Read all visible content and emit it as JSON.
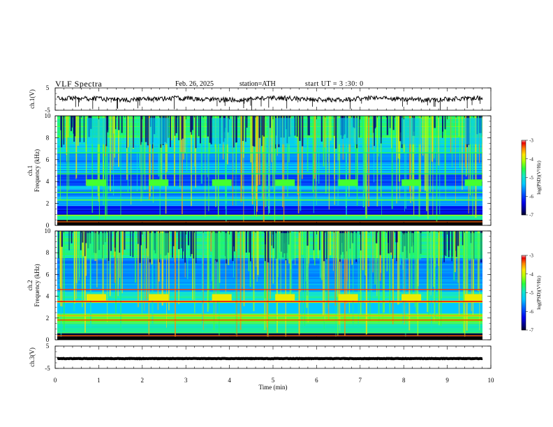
{
  "header": {
    "title": "VLF  Spectra",
    "date": "Feb. 26, 2025",
    "station": "station=ATH",
    "start": "start  UT  =   3  :30: 0"
  },
  "chart_data": [
    {
      "type": "line",
      "panel": "ch1-waveform",
      "ylabel": "ch.1(V)",
      "ylim": [
        -5,
        5
      ],
      "yticks": [
        "5",
        "-5"
      ],
      "x_range": [
        0,
        10
      ],
      "level": 0
    },
    {
      "type": "heatmap",
      "panel": "ch1-spectrogram",
      "ylabel": "ch.1\nFrequency  (kHz)",
      "ylim": [
        0,
        10
      ],
      "yticks": [
        "0",
        "2",
        "4",
        "6",
        "8",
        "10"
      ],
      "x_range": [
        0,
        10
      ],
      "colorbar": {
        "label": "log(PSD)(V²/Hz)",
        "range": [
          -7,
          -3
        ],
        "ticks": [
          "-3",
          "-4",
          "-5",
          "-6",
          "-7"
        ]
      }
    },
    {
      "type": "heatmap",
      "panel": "ch2-spectrogram",
      "ylabel": "ch.2\nFrequency  (kHz)",
      "ylim": [
        0,
        10
      ],
      "yticks": [
        "0",
        "2",
        "4",
        "6",
        "8",
        "10"
      ],
      "x_range": [
        0,
        10
      ],
      "colorbar": {
        "label": "log(PSD)(V²/Hz)",
        "range": [
          -7,
          -3
        ],
        "ticks": [
          "-3",
          "-4",
          "-5",
          "-6",
          "-7"
        ]
      }
    },
    {
      "type": "line",
      "panel": "ch3-waveform",
      "ylabel": "ch.3(V)",
      "ylim": [
        -5,
        5
      ],
      "yticks": [
        "5",
        "-5"
      ],
      "x_range": [
        0,
        10
      ],
      "level": -0.6
    }
  ],
  "xaxis": {
    "label": "Time  (min)",
    "ticks": [
      "0",
      "1",
      "2",
      "3",
      "4",
      "5",
      "6",
      "7",
      "8",
      "9",
      "10"
    ]
  }
}
